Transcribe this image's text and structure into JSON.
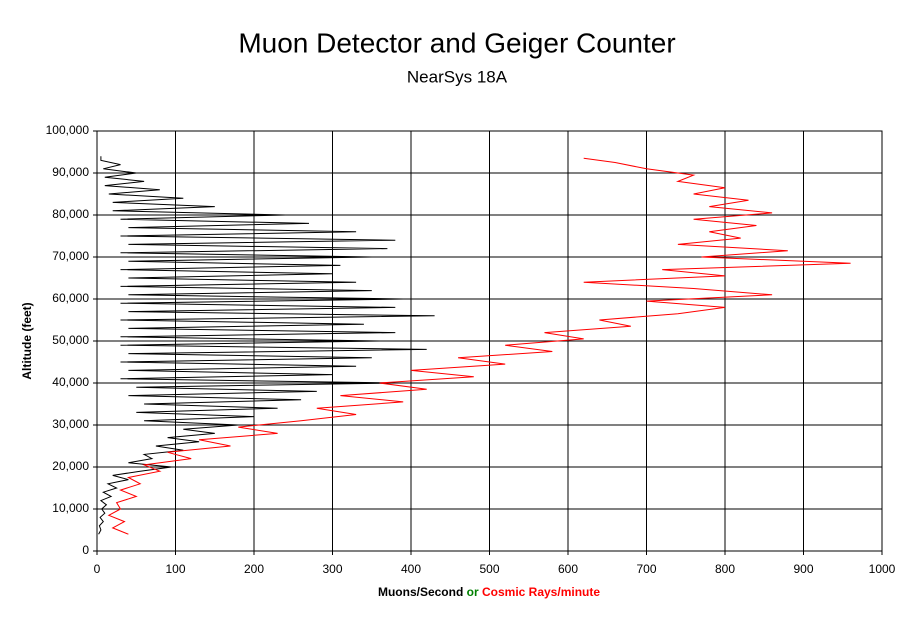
{
  "chart_data": {
    "type": "line",
    "title": "Muon Detector and Geiger Counter",
    "subtitle": "NearSys 18A",
    "ylabel": "Altitude (feet)",
    "xlabel_connector": "or",
    "xlabel_connector_color": "#008000",
    "xlim": [
      0,
      1000
    ],
    "xticks": [
      0,
      100,
      200,
      300,
      400,
      500,
      600,
      700,
      800,
      900,
      1000
    ],
    "ylim": [
      0,
      100000
    ],
    "yticks": [
      0,
      {
        "value": 10000,
        "label": "10,000"
      },
      {
        "value": 20000,
        "label": "20,000"
      },
      {
        "value": 30000,
        "label": "30,000"
      },
      {
        "value": 40000,
        "label": "40,000"
      },
      {
        "value": 50000,
        "label": "50,000"
      },
      {
        "value": 60000,
        "label": "60,000"
      },
      {
        "value": 70000,
        "label": "70,000"
      },
      {
        "value": 80000,
        "label": "80,000"
      },
      {
        "value": 90000,
        "label": "90,000"
      },
      {
        "value": 100000,
        "label": "100,000"
      }
    ],
    "grid": true,
    "series": [
      {
        "name": "Muons/Second",
        "color": "#000000",
        "x": [
          2,
          5,
          3,
          8,
          4,
          10,
          6,
          12,
          5,
          18,
          8,
          25,
          14,
          40,
          20,
          55,
          95,
          40,
          70,
          60,
          110,
          75,
          130,
          90,
          150,
          110,
          180,
          60,
          200,
          50,
          230,
          60,
          260,
          40,
          280,
          50,
          380,
          30,
          300,
          40,
          330,
          30,
          350,
          40,
          420,
          30,
          360,
          30,
          380,
          40,
          340,
          30,
          430,
          40,
          380,
          30,
          390,
          40,
          350,
          30,
          330,
          40,
          300,
          30,
          310,
          40,
          350,
          30,
          370,
          40,
          380,
          30,
          330,
          40,
          270,
          30,
          240,
          20,
          150,
          20,
          110,
          15,
          80,
          10,
          60,
          10,
          50,
          8,
          30,
          5,
          5
        ],
        "y": [
          4000,
          5000,
          6000,
          7000,
          8000,
          9000,
          10000,
          11000,
          12000,
          13000,
          14000,
          15000,
          16000,
          17000,
          18000,
          19000,
          20000,
          21000,
          22000,
          23000,
          24000,
          25000,
          26000,
          27000,
          28000,
          29000,
          30000,
          31000,
          32000,
          33000,
          34000,
          35000,
          36000,
          37000,
          38000,
          39000,
          40000,
          41000,
          42000,
          43000,
          44000,
          45000,
          46000,
          47000,
          48000,
          49000,
          50000,
          51000,
          52000,
          53000,
          54000,
          55000,
          56000,
          57000,
          58000,
          59000,
          60000,
          61000,
          62000,
          63000,
          64000,
          65000,
          66000,
          67000,
          68000,
          69000,
          70000,
          71000,
          72000,
          73000,
          74000,
          75000,
          76000,
          77000,
          78000,
          79000,
          80000,
          81000,
          82000,
          83000,
          84000,
          85000,
          86000,
          87000,
          88000,
          89000,
          90000,
          91000,
          92000,
          93000,
          94000
        ]
      },
      {
        "name": "Cosmic Rays/minute",
        "color": "#ff0000",
        "x": [
          40,
          20,
          35,
          15,
          30,
          25,
          50,
          30,
          55,
          40,
          80,
          60,
          120,
          90,
          170,
          130,
          230,
          180,
          260,
          330,
          280,
          390,
          310,
          420,
          360,
          480,
          400,
          520,
          460,
          580,
          520,
          620,
          570,
          680,
          640,
          740,
          800,
          700,
          860,
          760,
          620,
          800,
          720,
          960,
          770,
          880,
          740,
          820,
          780,
          840,
          760,
          860,
          780,
          830,
          760,
          800,
          740,
          760,
          700,
          660,
          620
        ],
        "y": [
          4000,
          5500,
          7000,
          8500,
          10000,
          11500,
          13000,
          14500,
          16000,
          17500,
          19000,
          20500,
          22000,
          23500,
          25000,
          26500,
          28000,
          29500,
          31000,
          32500,
          34000,
          35500,
          37000,
          38500,
          40000,
          41500,
          43000,
          44500,
          46000,
          47500,
          49000,
          50500,
          52000,
          53500,
          55000,
          56500,
          58000,
          59500,
          61000,
          62500,
          64000,
          65500,
          67000,
          68500,
          70000,
          71500,
          73000,
          74500,
          76000,
          77500,
          79000,
          80500,
          82000,
          83500,
          85000,
          86500,
          88000,
          89500,
          91000,
          92500,
          93500
        ]
      }
    ]
  }
}
